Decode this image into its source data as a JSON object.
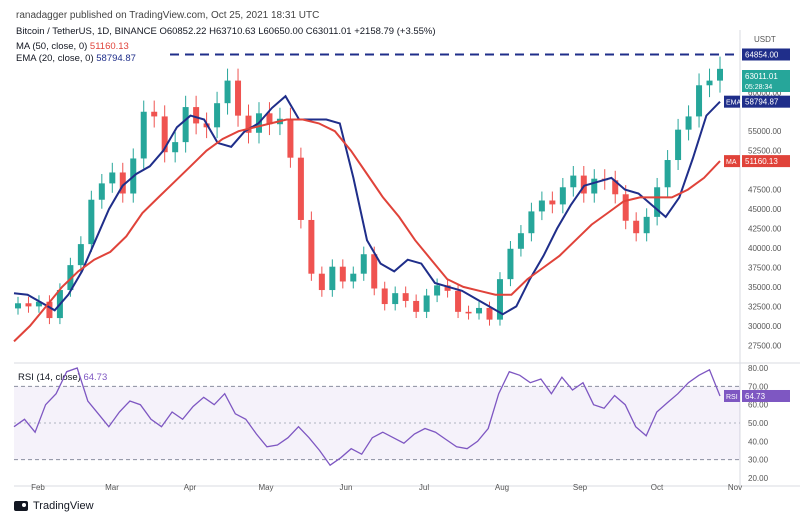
{
  "publisher": "ranadagger published on TradingView.com, Oct 25, 2021 18:31 UTC",
  "ohlc": {
    "symbol": "Bitcoin / TetherUS, 1D, BINANCE",
    "open": "O60852.22",
    "high": "H63710.63",
    "low": "L60650.00",
    "close": "C63011.01",
    "change": "+2158.79 (+3.55%)"
  },
  "ma_label": "MA (50, close, 0)",
  "ma_value": "51160.13",
  "ema_label": "EMA (20, close, 0)",
  "ema_value": "58794.87",
  "currency": "USDT",
  "rsi_label": "RSI (14, close)",
  "rsi_value": "64.73",
  "footer_brand": "TradingView",
  "colors": {
    "up": "#26a69a",
    "down": "#ef5350",
    "ema": "#1f2e8a",
    "ma": "#e0433a",
    "rsi": "#7e57c2",
    "hline": "#1f2e8a"
  },
  "chart_data": [
    {
      "type": "candlestick",
      "title": "Bitcoin / TetherUS, 1D, BINANCE",
      "x_ticks": [
        "Feb",
        "Mar",
        "Apr",
        "May",
        "Jun",
        "Jul",
        "Aug",
        "Sep",
        "Oct",
        "Nov"
      ],
      "y_ticks": [
        27500,
        30000,
        32500,
        35000,
        37500,
        40000,
        42500,
        45000,
        47500,
        52500,
        55000,
        60000
      ],
      "ylim": [
        26000,
        68000
      ],
      "horizontal_line": {
        "value": 64854,
        "label": "64854.00"
      },
      "price_labels": [
        {
          "label": "63011.01",
          "sub": "05:28:34"
        },
        {
          "name": "EMA",
          "label": "58794.87"
        },
        {
          "name": "MA",
          "label": "51160.13"
        }
      ],
      "series": [
        {
          "name": "EMA",
          "values": [
            34200,
            34000,
            33000,
            32000,
            34000,
            37000,
            41000,
            45000,
            48000,
            49500,
            50500,
            52500,
            55500,
            57000,
            56500,
            53500,
            53000,
            55000,
            56000,
            58000,
            59500,
            56500,
            56500,
            56500,
            56000,
            49000,
            41000,
            38000,
            37000,
            38500,
            38000,
            35500,
            35000,
            34500,
            33500,
            32500,
            31500,
            32500,
            36000,
            39000,
            42500,
            45500,
            48000,
            48500,
            49000,
            47500,
            47000,
            45500,
            44000,
            46500,
            51500,
            57000,
            58794
          ]
        },
        {
          "name": "MA",
          "values": [
            28000,
            30000,
            32500,
            35000,
            37000,
            38500,
            39500,
            41500,
            44500,
            46500,
            48500,
            50500,
            52500,
            54000,
            55000,
            55500,
            56000,
            56500,
            56500,
            56000,
            55000,
            52500,
            49500,
            46500,
            44000,
            41000,
            38500,
            36000,
            35000,
            34500,
            34000,
            34000,
            36000,
            37500,
            39000,
            41000,
            43000,
            44500,
            46000,
            46500,
            46500,
            46500,
            47500,
            49000,
            51160
          ]
        }
      ],
      "closes": [
        32900,
        32500,
        33100,
        31000,
        34600,
        37800,
        40500,
        46200,
        48300,
        49700,
        47000,
        51500,
        57500,
        56900,
        52300,
        53600,
        58100,
        56000,
        55500,
        58600,
        61500,
        57000,
        54800,
        57300,
        55900,
        56600,
        51600,
        43600,
        36700,
        34600,
        37600,
        35700,
        36700,
        39200,
        34800,
        32800,
        34200,
        33200,
        31800,
        33900,
        35200,
        34500,
        31800,
        31600,
        32300,
        30800,
        36000,
        39900,
        41900,
        44700,
        46100,
        45600,
        47800,
        49300,
        47000,
        48900,
        48700,
        46900,
        43500,
        41900,
        44000,
        47800,
        51300,
        55200,
        56900,
        60900,
        61500,
        63011
      ]
    },
    {
      "type": "line",
      "title": "RSI (14, close)",
      "y_ticks": [
        20,
        30,
        40,
        50,
        60,
        70,
        80
      ],
      "ylim": [
        20,
        80
      ],
      "bands": [
        30,
        70
      ],
      "series": [
        {
          "name": "RSI",
          "values": [
            48,
            52,
            45,
            60,
            66,
            78,
            80,
            62,
            55,
            48,
            56,
            62,
            60,
            52,
            48,
            56,
            52,
            59,
            64,
            60,
            66,
            55,
            52,
            44,
            37,
            38,
            42,
            48,
            42,
            35,
            27,
            31,
            36,
            33,
            42,
            45,
            42,
            39,
            44,
            47,
            45,
            41,
            37,
            36,
            40,
            47,
            66,
            78,
            76,
            72,
            74,
            66,
            75,
            68,
            72,
            60,
            58,
            65,
            60,
            48,
            43,
            56,
            61,
            66,
            72,
            76,
            79,
            64.73
          ]
        }
      ]
    }
  ]
}
